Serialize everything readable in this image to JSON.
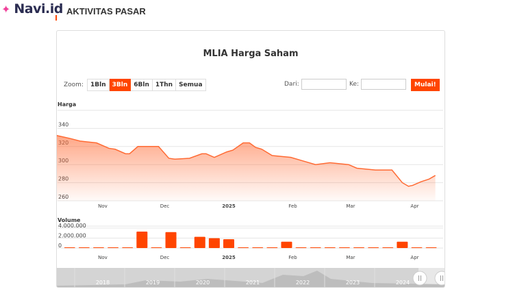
{
  "header": {
    "brand": "Navi.id",
    "title": "AKTIVITAS PASAR"
  },
  "chart": {
    "title": "MLIA Harga Saham",
    "zoom_label": "Zoom:",
    "zoom_buttons": [
      {
        "label": "1Bln",
        "active": false
      },
      {
        "label": "3Bln",
        "active": true
      },
      {
        "label": "6Bln",
        "active": false
      },
      {
        "label": "1Thn",
        "active": false
      },
      {
        "label": "Semua",
        "active": false
      }
    ],
    "from_label": "Dari:",
    "from_value": "",
    "to_label": "Ke:",
    "to_value": "",
    "go_label": "Mulai!",
    "accent": "#ff4500",
    "navigator_years": [
      "2018",
      "2019",
      "2020",
      "2021",
      "2022",
      "2023",
      "2024"
    ]
  },
  "chart_data": [
    {
      "type": "area",
      "title": "Harga",
      "xlabels": [
        "Nov",
        "Dec",
        "2025",
        "Feb",
        "Mar",
        "Apr"
      ],
      "yticks": [
        260,
        280,
        300,
        320,
        340
      ],
      "ylim": [
        260,
        360
      ],
      "grid": true,
      "color": "#ff6a33",
      "points": [
        [
          "2024-10-08",
          333
        ],
        [
          "2024-10-16",
          329
        ],
        [
          "2024-10-21",
          326
        ],
        [
          "2024-10-29",
          324
        ],
        [
          "2024-11-04",
          318
        ],
        [
          "2024-11-07",
          317
        ],
        [
          "2024-11-12",
          312
        ],
        [
          "2024-11-14",
          312
        ],
        [
          "2024-11-18",
          320
        ],
        [
          "2024-11-28",
          320
        ],
        [
          "2024-12-03",
          307
        ],
        [
          "2024-12-06",
          306
        ],
        [
          "2024-12-13",
          307
        ],
        [
          "2024-12-19",
          312
        ],
        [
          "2024-12-21",
          312
        ],
        [
          "2024-12-25",
          308
        ],
        [
          "2024-12-31",
          314
        ],
        [
          "2025-01-03",
          316
        ],
        [
          "2025-01-08",
          324
        ],
        [
          "2025-01-11",
          324
        ],
        [
          "2025-01-14",
          319
        ],
        [
          "2025-01-17",
          317
        ],
        [
          "2025-01-22",
          310
        ],
        [
          "2025-01-31",
          308
        ],
        [
          "2025-02-06",
          304
        ],
        [
          "2025-02-12",
          300
        ],
        [
          "2025-02-19",
          302
        ],
        [
          "2025-02-28",
          300
        ],
        [
          "2025-03-04",
          296
        ],
        [
          "2025-03-13",
          294
        ],
        [
          "2025-03-21",
          294
        ],
        [
          "2025-03-26",
          280
        ],
        [
          "2025-03-29",
          276
        ],
        [
          "2025-03-31",
          277
        ],
        [
          "2025-04-04",
          281
        ],
        [
          "2025-04-08",
          284
        ],
        [
          "2025-04-11",
          288
        ]
      ]
    },
    {
      "type": "bar",
      "title": "Volume",
      "yticks": [
        "0",
        "2.000.000",
        "4.000.000"
      ],
      "ytick_values": [
        0,
        2000000,
        4000000
      ],
      "ylim": [
        0,
        4400000
      ],
      "color": "#ff4500",
      "start": "2024-10-16",
      "values": [
        0,
        0,
        0,
        0,
        0,
        3300000,
        0,
        3200000,
        0,
        2250000,
        1980000,
        1770000,
        0,
        0,
        0,
        1280000,
        0,
        0,
        0,
        0,
        0,
        0,
        0,
        1280000,
        0,
        0
      ]
    }
  ]
}
